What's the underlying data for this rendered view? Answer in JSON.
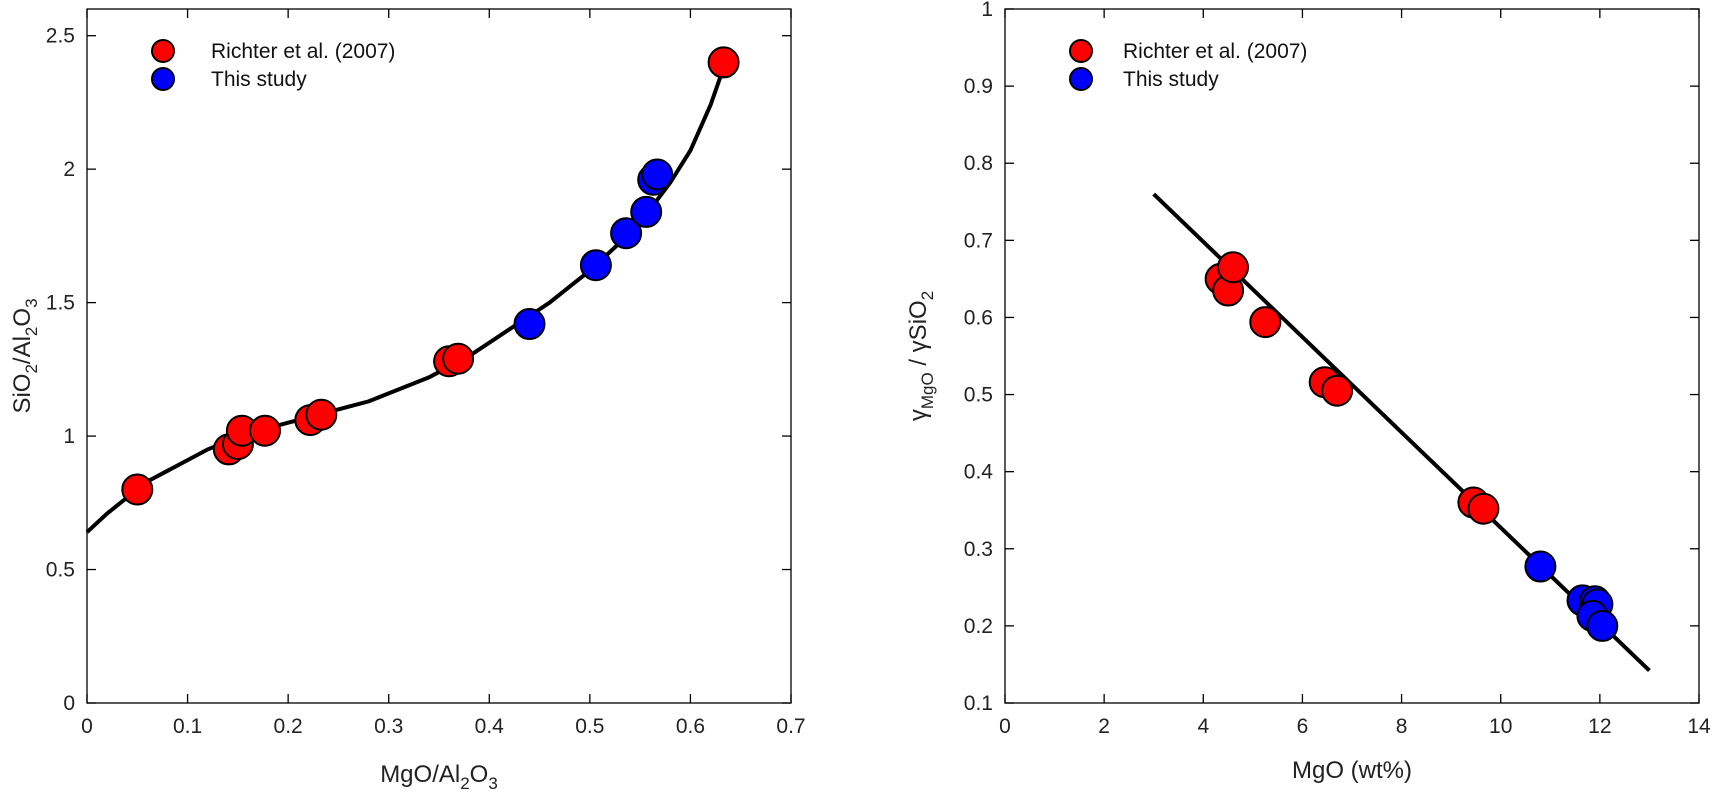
{
  "chart_data": [
    {
      "type": "scatter",
      "xlabel_parts": [
        "MgO/Al",
        "2",
        "O",
        "3"
      ],
      "ylabel_parts": [
        "SiO",
        "2",
        "/Al",
        "2",
        "O",
        "3"
      ],
      "xlim": [
        0,
        0.7
      ],
      "ylim": [
        0,
        2.6
      ],
      "xticks": [
        0,
        0.1,
        0.2,
        0.3,
        0.4,
        0.5,
        0.6,
        0.7
      ],
      "xtick_labels": [
        "0",
        "0.1",
        "0.2",
        "0.3",
        "0.4",
        "0.5",
        "0.6",
        "0.7"
      ],
      "yticks": [
        0,
        0.5,
        1,
        1.5,
        2,
        2.5
      ],
      "ytick_labels": [
        "0",
        "0.5",
        "1",
        "1.5",
        "2",
        "2.5"
      ],
      "grid": false,
      "legend_position": "top-left",
      "series": [
        {
          "name": "Richter et al. (2007)",
          "color": "#ff0000",
          "x": [
            0.05,
            0.141,
            0.15,
            0.154,
            0.177,
            0.222,
            0.233,
            0.36,
            0.369,
            0.633
          ],
          "y": [
            0.8,
            0.95,
            0.97,
            1.02,
            1.02,
            1.06,
            1.08,
            1.28,
            1.29,
            2.4
          ]
        },
        {
          "name": "This study",
          "color": "#0000ff",
          "x": [
            0.44,
            0.506,
            0.536,
            0.556,
            0.563,
            0.567
          ],
          "y": [
            1.42,
            1.64,
            1.76,
            1.84,
            1.96,
            1.98
          ]
        }
      ],
      "fit_curve": {
        "color": "#000000",
        "x": [
          0,
          0.02,
          0.04,
          0.06,
          0.08,
          0.1,
          0.12,
          0.14,
          0.16,
          0.18,
          0.2,
          0.22,
          0.24,
          0.26,
          0.28,
          0.3,
          0.32,
          0.34,
          0.36,
          0.38,
          0.4,
          0.42,
          0.44,
          0.46,
          0.48,
          0.5,
          0.52,
          0.54,
          0.56,
          0.58,
          0.6,
          0.62,
          0.633
        ],
        "y": [
          0.64,
          0.71,
          0.77,
          0.83,
          0.87,
          0.91,
          0.95,
          0.98,
          1.01,
          1.03,
          1.05,
          1.07,
          1.09,
          1.11,
          1.13,
          1.16,
          1.19,
          1.22,
          1.26,
          1.3,
          1.35,
          1.4,
          1.45,
          1.5,
          1.56,
          1.62,
          1.69,
          1.76,
          1.85,
          1.95,
          2.07,
          2.24,
          2.38
        ]
      }
    },
    {
      "type": "scatter",
      "xlabel": "MgO (wt%)",
      "ylabel_parts": [
        "γ",
        "MgO",
        " / ",
        "γ",
        "SiO",
        "2"
      ],
      "xlim": [
        0,
        14
      ],
      "ylim": [
        0.1,
        1
      ],
      "xticks": [
        0,
        2,
        4,
        6,
        8,
        10,
        12,
        14
      ],
      "xtick_labels": [
        "0",
        "2",
        "4",
        "6",
        "8",
        "10",
        "12",
        "14"
      ],
      "yticks": [
        0.1,
        0.2,
        0.3,
        0.4,
        0.5,
        0.6,
        0.7,
        0.8,
        0.9,
        1
      ],
      "ytick_labels": [
        "0.1",
        "0.2",
        "0.3",
        "0.4",
        "0.5",
        "0.6",
        "0.7",
        "0.8",
        "0.9",
        "1"
      ],
      "grid": false,
      "legend_position": "top-left",
      "series": [
        {
          "name": "Richter et al. (2007)",
          "color": "#ff0000",
          "x": [
            4.35,
            4.5,
            4.6,
            5.25,
            6.45,
            6.7,
            9.45,
            9.65
          ],
          "y": [
            0.65,
            0.635,
            0.665,
            0.594,
            0.516,
            0.505,
            0.36,
            0.352
          ]
        },
        {
          "name": "This study",
          "color": "#0000ff",
          "x": [
            10.8,
            11.65,
            11.9,
            11.95,
            11.85,
            12.05
          ],
          "y": [
            0.277,
            0.233,
            0.232,
            0.228,
            0.213,
            0.2
          ]
        }
      ],
      "fit_line": {
        "color": "#000000",
        "x": [
          3,
          13
        ],
        "y": [
          0.76,
          0.142
        ]
      }
    }
  ]
}
